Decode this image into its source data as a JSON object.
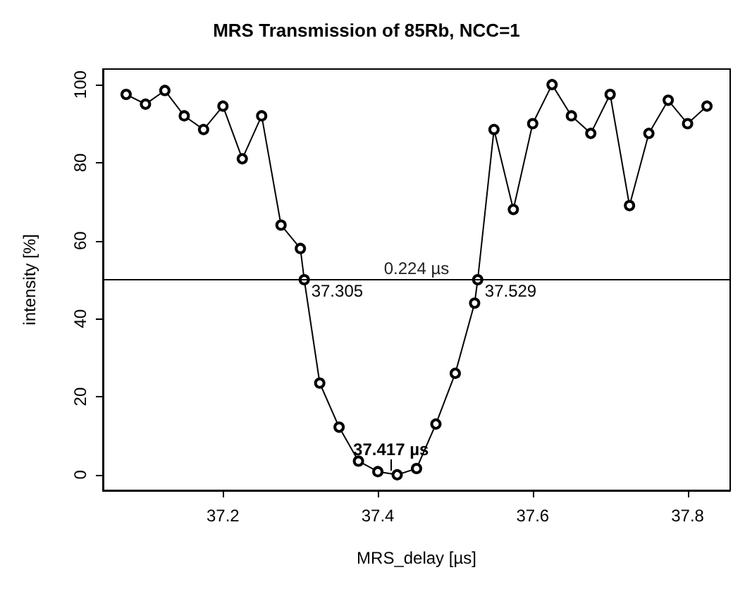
{
  "chart_data": {
    "type": "line",
    "title": "MRS Transmission of 85Rb, NCC=1",
    "xlabel": "MRS_delay [µs]",
    "ylabel": "intensity [%]",
    "x": [
      37.075,
      37.1,
      37.125,
      37.15,
      37.175,
      37.2,
      37.225,
      37.25,
      37.275,
      37.3,
      37.305,
      37.325,
      37.35,
      37.375,
      37.4,
      37.425,
      37.45,
      37.475,
      37.5,
      37.525,
      37.529,
      37.55,
      37.575,
      37.6,
      37.625,
      37.65,
      37.675,
      37.7,
      37.725,
      37.75,
      37.775,
      37.8,
      37.825
    ],
    "values": [
      97.5,
      95,
      98.5,
      92,
      88.5,
      94.5,
      81,
      92,
      64,
      58,
      50,
      23.5,
      12.2,
      3.5,
      0.8,
      0,
      1.6,
      13,
      26,
      44,
      50,
      88.5,
      68,
      90,
      100,
      92,
      87.5,
      97.5,
      69,
      87.5,
      96,
      90,
      94.5
    ],
    "color": "#000000",
    "marker": "circle",
    "line_style": "solid",
    "grid": false,
    "xlim": [
      37.045,
      37.855
    ],
    "xticks": [
      37.2,
      37.4,
      37.6,
      37.8
    ],
    "ylim": [
      -4,
      104
    ],
    "yticks": [
      0,
      20,
      40,
      60,
      80,
      100
    ],
    "ref_lines": [
      {
        "axis": "y",
        "value": 50,
        "label": "0.224 µs",
        "color": "#000000"
      }
    ],
    "annotations": [
      {
        "text": "37.305",
        "x": 37.305,
        "y": 50
      },
      {
        "text": "37.529",
        "x": 37.529,
        "y": 50
      },
      {
        "text": "37.417 µs",
        "x": 37.417,
        "y": 0
      }
    ]
  }
}
